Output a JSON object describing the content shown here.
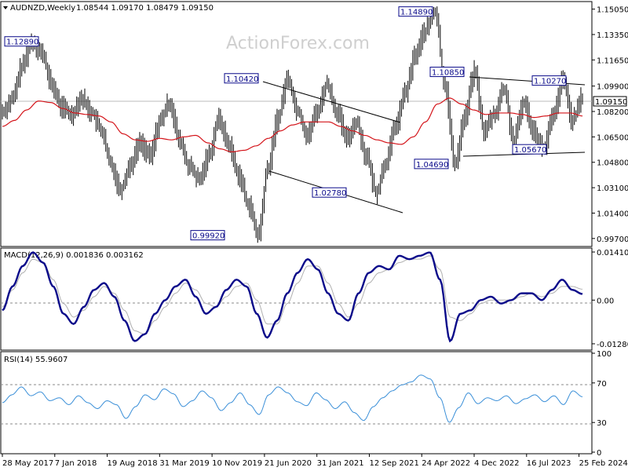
{
  "header": {
    "symbol": "AUDNZD,Weekly",
    "ohlc": "1.08544 1.09170 1.08479 1.09150"
  },
  "watermark": "ActionForex.com",
  "macd_title": "MACD(12,26,9) 0.001836 0.003162",
  "rsi_title": "RSI(14) 55.9607",
  "chart_data": {
    "type": "line",
    "title": "AUDNZD,Weekly",
    "x_labels": [
      "28 May 2017",
      "7 Jan 2018",
      "19 Aug 2018",
      "31 Mar 2019",
      "10 Nov 2019",
      "21 Jun 2020",
      "31 Jan 2021",
      "12 Sep 2021",
      "24 Apr 2022",
      "4 Dec 2022",
      "16 Jul 2023",
      "25 Feb 2024"
    ],
    "price_axis": {
      "ticks": [
        "1.15050",
        "1.13350",
        "1.11650",
        "1.09900",
        "1.08200",
        "1.06500",
        "1.04800",
        "1.03100",
        "1.01400",
        "0.99700"
      ],
      "ylim": [
        0.9927,
        1.1545
      ]
    },
    "current_price": "1.09150",
    "price_points": [
      1.082,
      1.09,
      1.112,
      1.129,
      1.121,
      1.1,
      1.085,
      1.08,
      1.091,
      1.082,
      1.07,
      1.047,
      1.03,
      1.046,
      1.061,
      1.052,
      1.075,
      1.088,
      1.062,
      1.045,
      1.036,
      1.053,
      1.077,
      1.06,
      1.04,
      1.02,
      0.9992,
      1.044,
      1.077,
      1.1042,
      1.083,
      1.066,
      1.082,
      1.1,
      1.082,
      1.064,
      1.075,
      1.052,
      1.0278,
      1.048,
      1.073,
      1.095,
      1.12,
      1.136,
      1.1489,
      1.1,
      1.0469,
      1.078,
      1.1085,
      1.069,
      1.08,
      1.097,
      1.062,
      1.088,
      1.07,
      1.0567,
      1.078,
      1.1027,
      1.076,
      1.0915
    ],
    "series": [
      {
        "name": "Price",
        "color": "#000000"
      },
      {
        "name": "MA",
        "color": "#d4141a"
      }
    ],
    "ma_points": [
      1.072,
      1.076,
      1.083,
      1.089,
      1.088,
      1.084,
      1.081,
      1.08,
      1.079,
      1.075,
      1.067,
      1.063,
      1.062,
      1.064,
      1.063,
      1.065,
      1.066,
      1.061,
      1.057,
      1.055,
      1.056,
      1.059,
      1.064,
      1.069,
      1.073,
      1.075,
      1.075,
      1.075,
      1.072,
      1.069,
      1.066,
      1.063,
      1.061,
      1.06,
      1.065,
      1.075,
      1.087,
      1.091,
      1.087,
      1.083,
      1.08,
      1.081,
      1.081,
      1.08,
      1.078,
      1.079,
      1.081,
      1.081,
      1.079
    ],
    "annotations": [
      {
        "text": "1.12890",
        "value": 1.1289
      },
      {
        "text": "1.10420",
        "value": 1.1042
      },
      {
        "text": "0.99920",
        "value": 0.9992
      },
      {
        "text": "1.02780",
        "value": 1.0278
      },
      {
        "text": "1.14890",
        "value": 1.1489
      },
      {
        "text": "1.10850",
        "value": 1.1085
      },
      {
        "text": "1.04690",
        "value": 1.0469
      },
      {
        "text": "1.10270",
        "value": 1.1027
      },
      {
        "text": "1.05670",
        "value": 1.0567
      }
    ],
    "macd_axis": {
      "ticks": [
        "0.014104",
        "0.00",
        "-0.012806"
      ],
      "ylim": [
        -0.0142,
        0.0148
      ]
    },
    "macd_points": [
      -0.003,
      0.004,
      0.01,
      0.014,
      0.011,
      0.004,
      -0.004,
      -0.007,
      -0.002,
      0.003,
      0.005,
      0.001,
      -0.006,
      -0.012,
      -0.01,
      -0.004,
      0.0,
      0.004,
      0.006,
      0.001,
      -0.004,
      -0.002,
      0.003,
      0.006,
      0.004,
      -0.004,
      -0.011,
      -0.006,
      0.002,
      0.008,
      0.012,
      0.009,
      0.002,
      -0.004,
      -0.006,
      0.002,
      0.008,
      0.01,
      0.009,
      0.013,
      0.012,
      0.013,
      0.014,
      0.006,
      -0.012,
      -0.004,
      -0.003,
      0.0,
      0.001,
      -0.001,
      0.0,
      0.002,
      0.002,
      0.0,
      0.003,
      0.006,
      0.003,
      0.0018
    ],
    "signal_points": [
      -0.002,
      0.003,
      0.008,
      0.012,
      0.011,
      0.006,
      -0.001,
      -0.005,
      -0.003,
      0.001,
      0.004,
      0.002,
      -0.003,
      -0.009,
      -0.01,
      -0.006,
      -0.002,
      0.002,
      0.005,
      0.003,
      -0.001,
      -0.002,
      0.001,
      0.004,
      0.005,
      0.0,
      -0.007,
      -0.007,
      -0.001,
      0.005,
      0.01,
      0.01,
      0.005,
      -0.001,
      -0.005,
      -0.001,
      0.005,
      0.008,
      0.009,
      0.011,
      0.012,
      0.012,
      0.013,
      0.009,
      -0.005,
      -0.006,
      -0.004,
      -0.001,
      0.0,
      0.0,
      0.0,
      0.001,
      0.002,
      0.001,
      0.002,
      0.004,
      0.004,
      0.0032
    ],
    "rsi_axis": {
      "ticks": [
        "100",
        "70",
        "30",
        "0"
      ],
      "ylim": [
        0,
        100
      ]
    },
    "rsi_points": [
      50,
      58,
      66,
      57,
      61,
      52,
      55,
      48,
      57,
      50,
      44,
      52,
      48,
      34,
      46,
      58,
      53,
      64,
      59,
      46,
      52,
      62,
      55,
      42,
      50,
      60,
      48,
      38,
      58,
      66,
      60,
      51,
      47,
      60,
      53,
      44,
      51,
      40,
      32,
      46,
      55,
      62,
      68,
      71,
      78,
      74,
      55,
      30,
      45,
      60,
      49,
      55,
      52,
      57,
      49,
      54,
      58,
      51,
      57,
      48,
      62,
      55.96
    ]
  }
}
